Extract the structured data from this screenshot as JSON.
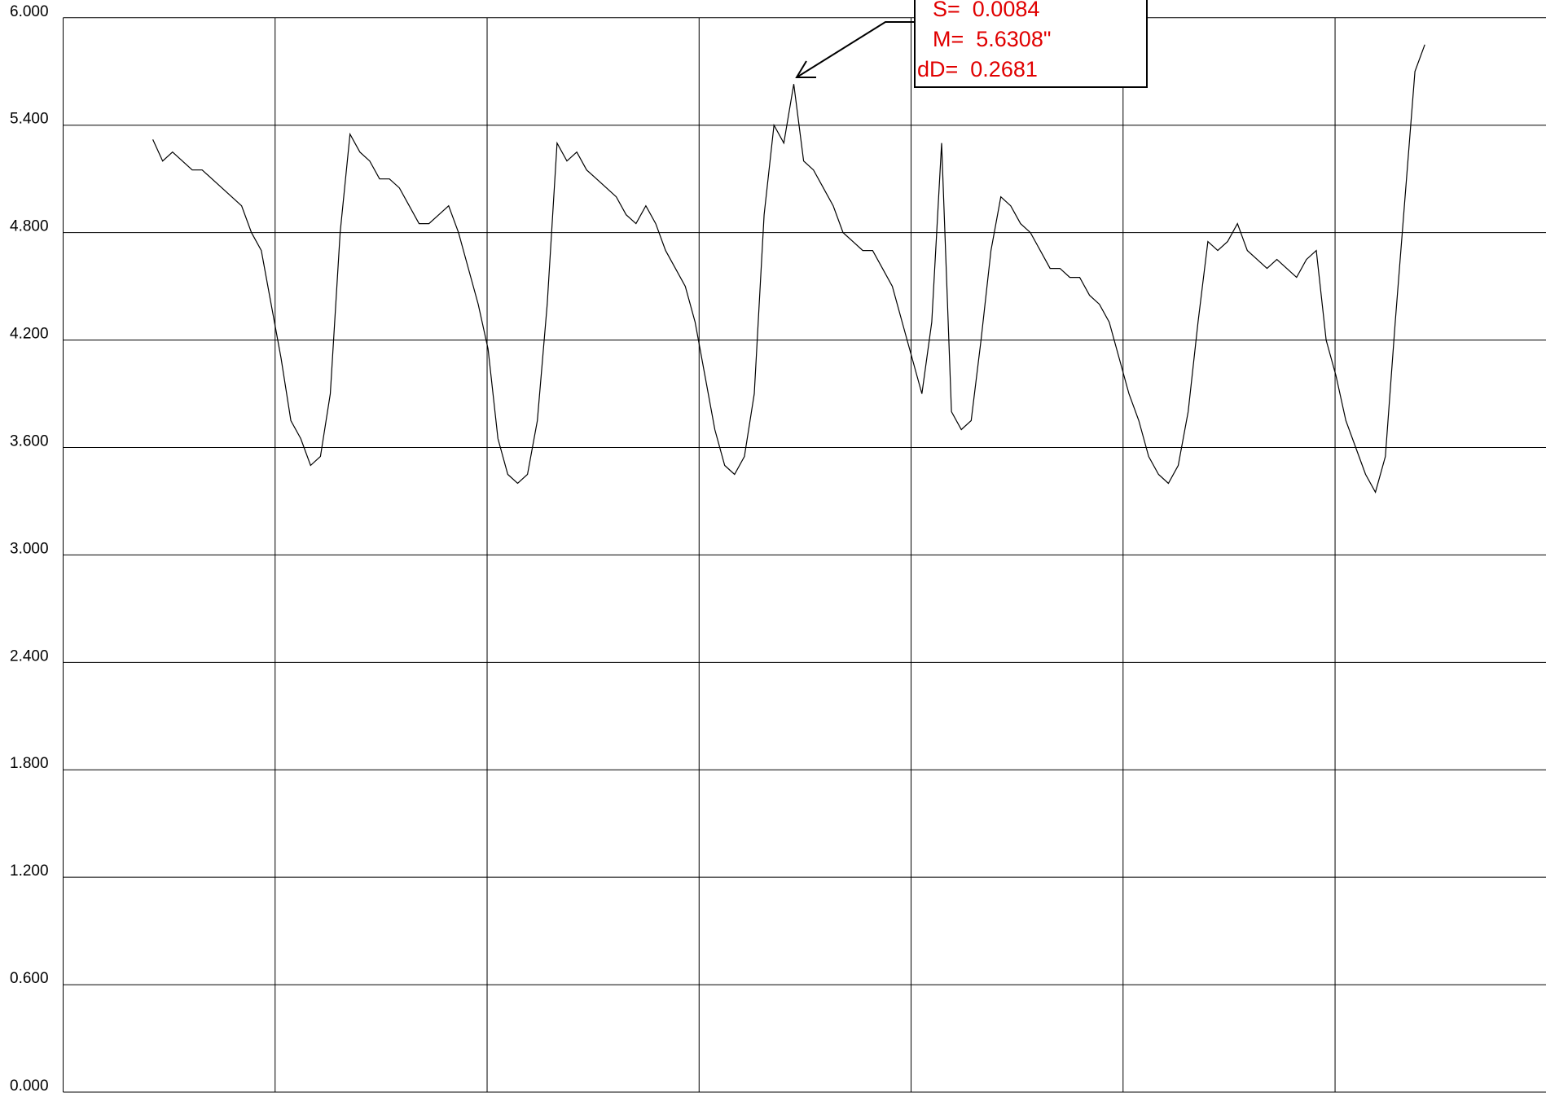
{
  "chart_data": {
    "type": "line",
    "values": [
      5.32,
      5.2,
      5.25,
      5.2,
      5.15,
      5.15,
      5.1,
      5.05,
      5.0,
      4.95,
      4.8,
      4.7,
      4.4,
      4.1,
      3.75,
      3.65,
      3.5,
      3.55,
      3.9,
      4.8,
      5.35,
      5.25,
      5.2,
      5.1,
      5.1,
      5.05,
      4.95,
      4.85,
      4.85,
      4.9,
      4.95,
      4.8,
      4.6,
      4.4,
      4.15,
      3.65,
      3.45,
      3.4,
      3.45,
      3.75,
      4.4,
      5.3,
      5.2,
      5.25,
      5.15,
      5.1,
      5.05,
      5.0,
      4.9,
      4.85,
      4.95,
      4.85,
      4.7,
      4.6,
      4.5,
      4.3,
      4.0,
      3.7,
      3.5,
      3.45,
      3.55,
      3.9,
      4.9,
      5.4,
      5.3,
      5.63,
      5.2,
      5.15,
      5.05,
      4.95,
      4.8,
      4.75,
      4.7,
      4.7,
      4.6,
      4.5,
      4.3,
      4.1,
      3.9,
      4.3,
      5.3,
      3.8,
      3.7,
      3.75,
      4.2,
      4.7,
      5.0,
      4.95,
      4.85,
      4.8,
      4.7,
      4.6,
      4.6,
      4.55,
      4.55,
      4.45,
      4.4,
      4.3,
      4.1,
      3.9,
      3.75,
      3.55,
      3.45,
      3.4,
      3.5,
      3.8,
      4.3,
      4.75,
      4.7,
      4.75,
      4.85,
      4.7,
      4.65,
      4.6,
      4.65,
      4.6,
      4.55,
      4.65,
      4.7,
      4.2,
      4.0,
      3.75,
      3.6,
      3.45,
      3.35,
      3.55,
      4.3,
      5.0,
      5.7,
      5.85
    ],
    "color": "#000000",
    "ylim": [
      0,
      6
    ],
    "yticks": [
      {
        "value": 0,
        "label": "0.000"
      },
      {
        "value": 0.6,
        "label": "0.600"
      },
      {
        "value": 1.2,
        "label": "1.200"
      },
      {
        "value": 1.8,
        "label": "1.800"
      },
      {
        "value": 2.4,
        "label": "2.400"
      },
      {
        "value": 3,
        "label": "3.000"
      },
      {
        "value": 3.6,
        "label": "3.600"
      },
      {
        "value": 4.2,
        "label": "4.200"
      },
      {
        "value": 4.8,
        "label": "4.800"
      },
      {
        "value": 5.4,
        "label": "5.400"
      },
      {
        "value": 6,
        "label": "6.000"
      }
    ],
    "grid": true,
    "annotation": [
      "S=  0.0084",
      "M=  5.6308\"",
      "dD=  0.2681"
    ]
  }
}
